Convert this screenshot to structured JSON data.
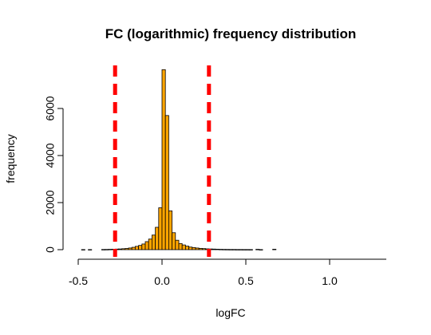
{
  "chart_data": {
    "type": "bar",
    "title": "FC (logarithmic) frequency distribution",
    "xlabel": "logFC",
    "ylabel": "frequency",
    "xlim": [
      -0.5,
      1.3
    ],
    "ylim": [
      0,
      7800
    ],
    "x_ticks": [
      {
        "value": -0.5,
        "label": "-0.5"
      },
      {
        "value": 0.0,
        "label": "0.0"
      },
      {
        "value": 0.5,
        "label": "0.5"
      },
      {
        "value": 1.0,
        "label": "1.0"
      }
    ],
    "y_ticks": [
      {
        "value": 0,
        "label": "0"
      },
      {
        "value": 2000,
        "label": "2000"
      },
      {
        "value": 4000,
        "label": "4000"
      },
      {
        "value": 6000,
        "label": "6000"
      }
    ],
    "bin_width": 0.02,
    "bins": [
      {
        "start": -0.48,
        "end": -0.46,
        "count": 4
      },
      {
        "start": -0.44,
        "end": -0.42,
        "count": 4
      },
      {
        "start": -0.36,
        "end": -0.34,
        "count": 8
      },
      {
        "start": -0.34,
        "end": -0.32,
        "count": 10
      },
      {
        "start": -0.32,
        "end": -0.3,
        "count": 15
      },
      {
        "start": -0.3,
        "end": -0.28,
        "count": 20
      },
      {
        "start": -0.28,
        "end": -0.26,
        "count": 25
      },
      {
        "start": -0.26,
        "end": -0.24,
        "count": 30
      },
      {
        "start": -0.24,
        "end": -0.22,
        "count": 40
      },
      {
        "start": -0.22,
        "end": -0.2,
        "count": 50
      },
      {
        "start": -0.2,
        "end": -0.18,
        "count": 70
      },
      {
        "start": -0.18,
        "end": -0.16,
        "count": 100
      },
      {
        "start": -0.16,
        "end": -0.14,
        "count": 140
      },
      {
        "start": -0.14,
        "end": -0.12,
        "count": 180
      },
      {
        "start": -0.12,
        "end": -0.1,
        "count": 240
      },
      {
        "start": -0.1,
        "end": -0.08,
        "count": 340
      },
      {
        "start": -0.08,
        "end": -0.06,
        "count": 450
      },
      {
        "start": -0.06,
        "end": -0.04,
        "count": 620
      },
      {
        "start": -0.04,
        "end": -0.02,
        "count": 950
      },
      {
        "start": -0.02,
        "end": 0.0,
        "count": 1780
      },
      {
        "start": 0.0,
        "end": 0.02,
        "count": 7650
      },
      {
        "start": 0.02,
        "end": 0.04,
        "count": 5700
      },
      {
        "start": 0.04,
        "end": 0.06,
        "count": 1650
      },
      {
        "start": 0.06,
        "end": 0.08,
        "count": 720
      },
      {
        "start": 0.08,
        "end": 0.1,
        "count": 400
      },
      {
        "start": 0.1,
        "end": 0.12,
        "count": 260
      },
      {
        "start": 0.12,
        "end": 0.14,
        "count": 200
      },
      {
        "start": 0.14,
        "end": 0.16,
        "count": 150
      },
      {
        "start": 0.16,
        "end": 0.18,
        "count": 110
      },
      {
        "start": 0.18,
        "end": 0.2,
        "count": 90
      },
      {
        "start": 0.2,
        "end": 0.22,
        "count": 70
      },
      {
        "start": 0.22,
        "end": 0.24,
        "count": 55
      },
      {
        "start": 0.24,
        "end": 0.26,
        "count": 45
      },
      {
        "start": 0.26,
        "end": 0.28,
        "count": 35
      },
      {
        "start": 0.28,
        "end": 0.3,
        "count": 30
      },
      {
        "start": 0.3,
        "end": 0.32,
        "count": 25
      },
      {
        "start": 0.32,
        "end": 0.34,
        "count": 20
      },
      {
        "start": 0.34,
        "end": 0.36,
        "count": 15
      },
      {
        "start": 0.36,
        "end": 0.38,
        "count": 12
      },
      {
        "start": 0.38,
        "end": 0.4,
        "count": 10
      },
      {
        "start": 0.4,
        "end": 0.42,
        "count": 8
      },
      {
        "start": 0.42,
        "end": 0.44,
        "count": 8
      },
      {
        "start": 0.44,
        "end": 0.46,
        "count": 6
      },
      {
        "start": 0.46,
        "end": 0.48,
        "count": 6
      },
      {
        "start": 0.48,
        "end": 0.5,
        "count": 5
      },
      {
        "start": 0.5,
        "end": 0.52,
        "count": 5
      },
      {
        "start": 0.52,
        "end": 0.54,
        "count": 4
      },
      {
        "start": 0.56,
        "end": 0.58,
        "count": 15
      },
      {
        "start": 0.58,
        "end": 0.6,
        "count": 3
      },
      {
        "start": 0.66,
        "end": 0.68,
        "count": 18
      }
    ],
    "thresholds": [
      -0.28,
      0.28
    ],
    "grid": false,
    "legend": "none",
    "colors": {
      "bar_fill": "#FFA500",
      "bar_stroke": "#000000",
      "threshold_line": "#FF0000"
    }
  }
}
